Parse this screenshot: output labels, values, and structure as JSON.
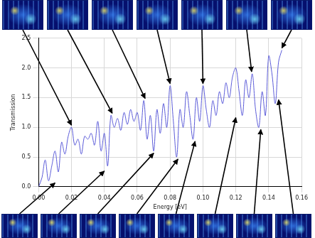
{
  "chart_data": {
    "type": "line",
    "x_label": "Energy [eV]",
    "y_label": "Transmission",
    "color": "#5a5ad8",
    "x": [
      0.0,
      0.002,
      0.004,
      0.006,
      0.008,
      0.01,
      0.012,
      0.014,
      0.016,
      0.018,
      0.02,
      0.022,
      0.024,
      0.026,
      0.028,
      0.03,
      0.032,
      0.034,
      0.036,
      0.038,
      0.04,
      0.042,
      0.044,
      0.046,
      0.048,
      0.05,
      0.052,
      0.054,
      0.056,
      0.058,
      0.06,
      0.062,
      0.064,
      0.066,
      0.068,
      0.07,
      0.072,
      0.074,
      0.076,
      0.078,
      0.08,
      0.082,
      0.084,
      0.086,
      0.088,
      0.09,
      0.092,
      0.094,
      0.096,
      0.098,
      0.1,
      0.102,
      0.104,
      0.106,
      0.108,
      0.11,
      0.112,
      0.114,
      0.116,
      0.118,
      0.12,
      0.122,
      0.124,
      0.126,
      0.128,
      0.13,
      0.132,
      0.134,
      0.136,
      0.138,
      0.14,
      0.142,
      0.144,
      0.146,
      0.148
    ],
    "values": [
      0.0,
      0.15,
      0.45,
      0.1,
      0.35,
      0.6,
      0.25,
      0.75,
      0.55,
      0.85,
      1.0,
      0.7,
      0.8,
      0.55,
      0.85,
      0.8,
      0.9,
      0.7,
      1.1,
      0.6,
      0.9,
      0.35,
      1.2,
      1.0,
      1.15,
      0.95,
      1.25,
      1.05,
      1.3,
      1.1,
      1.25,
      0.95,
      1.45,
      0.8,
      1.2,
      0.6,
      1.3,
      0.9,
      1.4,
      1.0,
      1.7,
      1.1,
      0.5,
      1.3,
      1.0,
      1.6,
      1.2,
      0.8,
      1.5,
      1.1,
      1.7,
      1.3,
      1.0,
      1.45,
      1.2,
      1.6,
      1.4,
      1.75,
      1.5,
      1.85,
      2.0,
      1.6,
      1.2,
      1.8,
      1.5,
      1.9,
      1.3,
      1.0,
      1.6,
      1.2,
      2.2,
      1.9,
      1.4,
      2.1,
      2.3
    ],
    "xlim": [
      0,
      0.16
    ],
    "xticks": [
      {
        "value": 0,
        "label": "0.00"
      },
      {
        "value": 0.02,
        "label": "0.02"
      },
      {
        "value": 0.04,
        "label": "0.04"
      },
      {
        "value": 0.06,
        "label": "0.06"
      },
      {
        "value": 0.08,
        "label": "0.08"
      },
      {
        "value": 0.1,
        "label": "0.10"
      },
      {
        "value": 0.12,
        "label": "0.12"
      },
      {
        "value": 0.14,
        "label": "0.14"
      },
      {
        "value": 0.16,
        "label": "0.16"
      }
    ],
    "ylim": [
      0,
      2.5
    ],
    "yticks": [
      {
        "value": 0,
        "label": "0.0"
      },
      0.5,
      {
        "value": 1,
        "label": "1.0"
      },
      1.5,
      {
        "value": 2,
        "label": "2.0"
      },
      2.5
    ],
    "grid": true
  }
}
